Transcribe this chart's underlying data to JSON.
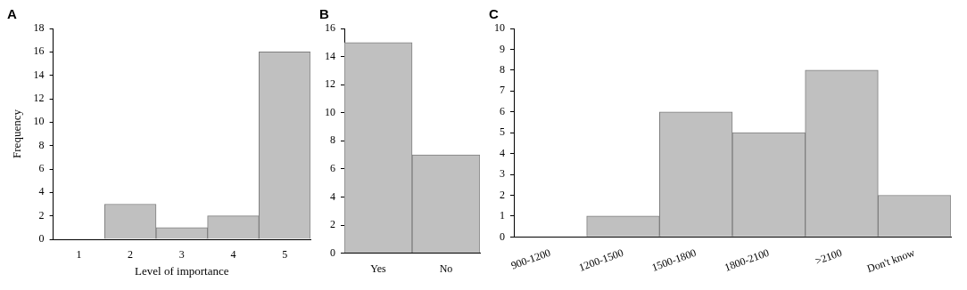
{
  "chart_data": [
    {
      "type": "bar",
      "title": "A",
      "xlabel": "Level of importance",
      "ylabel": "Frequency",
      "categories": [
        "1",
        "2",
        "3",
        "4",
        "5"
      ],
      "values": [
        0,
        3,
        1,
        2,
        16
      ],
      "color": "#c0c0c0",
      "ylim": [
        0,
        18
      ],
      "yticks": [
        0,
        2,
        4,
        6,
        8,
        10,
        12,
        14,
        16,
        18
      ]
    },
    {
      "type": "bar",
      "title": "B",
      "categories": [
        "Yes",
        "No"
      ],
      "values": [
        15,
        7
      ],
      "color": "#c0c0c0",
      "ylim": [
        0,
        16
      ],
      "yticks": [
        0,
        2,
        4,
        6,
        8,
        10,
        12,
        14,
        16
      ]
    },
    {
      "type": "bar",
      "title": "C",
      "categories": [
        "900-1200",
        "1200-1500",
        "1500-1800",
        "1800-2100",
        ">2100",
        "Don't know"
      ],
      "values": [
        0,
        1,
        6,
        5,
        8,
        2
      ],
      "color": "#c0c0c0",
      "ylim": [
        0,
        10
      ],
      "yticks": [
        0,
        1,
        2,
        3,
        4,
        5,
        6,
        7,
        8,
        9,
        10
      ]
    }
  ]
}
